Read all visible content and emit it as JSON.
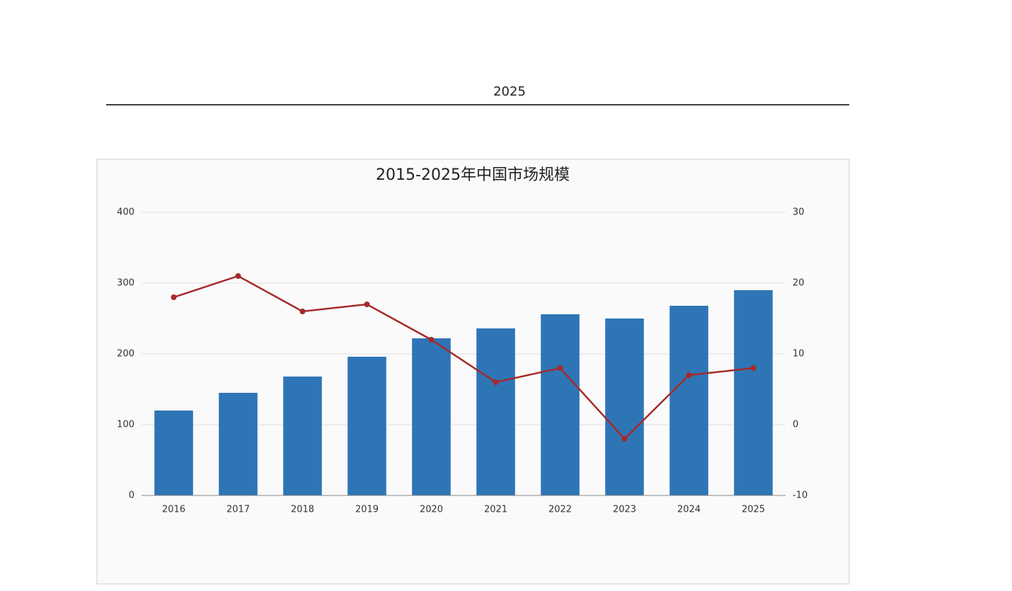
{
  "header": {
    "title": "2025"
  },
  "chart_data": {
    "type": "bar-line",
    "title": "2015-2025年中国市场规模",
    "categories": [
      "2016",
      "2017",
      "2018",
      "2019",
      "2020",
      "2021",
      "2022",
      "2023",
      "2024",
      "2025"
    ],
    "series": [
      {
        "type": "bar",
        "color": "#2e75b6",
        "values": [
          120,
          145,
          168,
          196,
          222,
          236,
          256,
          250,
          268,
          290
        ]
      },
      {
        "type": "line",
        "axis": "y2",
        "color": "#a52a2a",
        "values": [
          18,
          21,
          16,
          17,
          12,
          6,
          8,
          -2,
          7,
          8
        ]
      }
    ],
    "ylim": [
      0,
      400
    ],
    "yticks": [
      0,
      100,
      200,
      300,
      400
    ],
    "y2lim": [
      -10,
      30
    ],
    "y2ticks": [
      -10,
      0,
      10,
      20,
      30
    ],
    "grid": true
  }
}
